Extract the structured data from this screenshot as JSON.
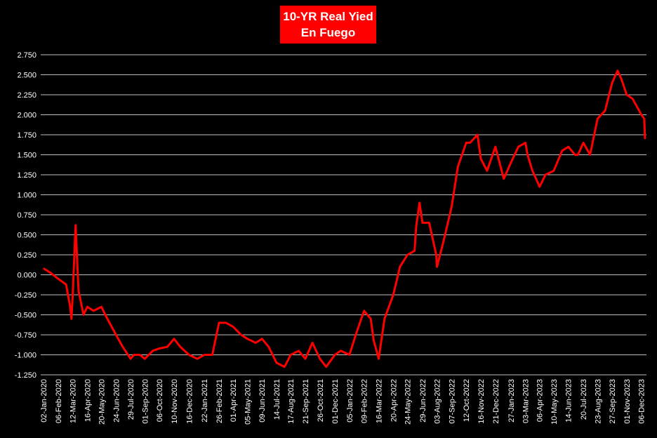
{
  "title_line1": "10-YR Real Yied",
  "title_line2": "En Fuego",
  "colors": {
    "background": "#000000",
    "line": "#ff0000",
    "title_bg": "#ff0000",
    "text": "#ffffff",
    "grid": "#ffffff"
  },
  "chart_data": {
    "type": "line",
    "title": "10-YR Real Yied En Fuego",
    "xlabel": "",
    "ylabel": "",
    "ylim": [
      -1.25,
      2.75
    ],
    "yticks": [
      "2.750",
      "2.500",
      "2.250",
      "2.000",
      "1.750",
      "1.500",
      "1.250",
      "1.000",
      "0.750",
      "0.500",
      "0.250",
      "0.000",
      "-0.250",
      "-0.500",
      "-0.750",
      "-1.000",
      "-1.250"
    ],
    "xticks": [
      "02-Jan-2020",
      "06-Feb-2020",
      "12-Mar-2020",
      "16-Apr-2020",
      "20-May-2020",
      "24-Jun-2020",
      "29-Jul-2020",
      "01-Sep-2020",
      "06-Oct-2020",
      "10-Nov-2020",
      "16-Dec-2020",
      "22-Jan-2021",
      "26-Feb-2021",
      "01-Apr-2021",
      "05-May-2021",
      "09-Jun-2021",
      "14-Jul-2021",
      "17-Aug-2021",
      "21-Sep-2021",
      "26-Oct-2021",
      "01-Dec-2021",
      "05-Jan-2022",
      "09-Feb-2022",
      "16-Mar-2022",
      "20-Apr-2022",
      "24-May-2022",
      "29-Jun-2022",
      "03-Aug-2022",
      "07-Sep-2022",
      "12-Oct-2022",
      "16-Nov-2022",
      "21-Dec-2022",
      "27-Jan-2023",
      "03-Mar-2023",
      "06-Apr-2023",
      "10-May-2023",
      "14-Jun-2023",
      "20-Jul-2023",
      "23-Aug-2023",
      "27-Sep-2023",
      "01-Nov-2023",
      "06-Dec-2023"
    ],
    "grid": true,
    "legend": "none",
    "series": [
      {
        "x": [
          "2020-01-02",
          "2020-01-20",
          "2020-02-06",
          "2020-02-25",
          "2020-03-06",
          "2020-03-09",
          "2020-03-12",
          "2020-03-19",
          "2020-03-26",
          "2020-04-07",
          "2020-04-16",
          "2020-05-01",
          "2020-05-20",
          "2020-05-29",
          "2020-06-24",
          "2020-07-10",
          "2020-07-29",
          "2020-08-06",
          "2020-08-20",
          "2020-09-01",
          "2020-09-20",
          "2020-10-06",
          "2020-10-25",
          "2020-11-10",
          "2020-11-25",
          "2020-12-16",
          "2021-01-05",
          "2021-01-22",
          "2021-02-10",
          "2021-02-26",
          "2021-03-15",
          "2021-04-01",
          "2021-04-20",
          "2021-05-05",
          "2021-05-25",
          "2021-06-09",
          "2021-06-25",
          "2021-07-14",
          "2021-08-02",
          "2021-08-17",
          "2021-09-05",
          "2021-09-21",
          "2021-10-08",
          "2021-10-26",
          "2021-11-10",
          "2021-12-01",
          "2021-12-15",
          "2022-01-05",
          "2022-01-20",
          "2022-02-09",
          "2022-02-25",
          "2022-03-04",
          "2022-03-16",
          "2022-03-30",
          "2022-04-20",
          "2022-05-06",
          "2022-05-24",
          "2022-06-10",
          "2022-06-14",
          "2022-06-22",
          "2022-06-29",
          "2022-07-15",
          "2022-08-01",
          "2022-08-03",
          "2022-08-20",
          "2022-09-07",
          "2022-09-22",
          "2022-10-12",
          "2022-10-21",
          "2022-11-08",
          "2022-11-16",
          "2022-12-01",
          "2022-12-21",
          "2023-01-10",
          "2023-01-27",
          "2023-02-14",
          "2023-03-03",
          "2023-03-08",
          "2023-03-20",
          "2023-04-06",
          "2023-04-20",
          "2023-05-10",
          "2023-05-30",
          "2023-06-14",
          "2023-06-30",
          "2023-07-07",
          "2023-07-20",
          "2023-08-05",
          "2023-08-23",
          "2023-09-10",
          "2023-09-27",
          "2023-10-10",
          "2023-10-19",
          "2023-11-01",
          "2023-11-15",
          "2023-12-01",
          "2023-12-06",
          "2023-12-13",
          "2023-12-15"
        ],
        "values": [
          0.08,
          0.02,
          -0.05,
          -0.12,
          -0.4,
          -0.55,
          -0.25,
          0.62,
          -0.2,
          -0.5,
          -0.4,
          -0.45,
          -0.4,
          -0.5,
          -0.75,
          -0.9,
          -1.05,
          -1.0,
          -1.0,
          -1.05,
          -0.95,
          -0.92,
          -0.9,
          -0.8,
          -0.9,
          -1.0,
          -1.05,
          -1.0,
          -1.0,
          -0.6,
          -0.6,
          -0.65,
          -0.75,
          -0.8,
          -0.85,
          -0.8,
          -0.9,
          -1.1,
          -1.15,
          -1.0,
          -0.95,
          -1.05,
          -0.85,
          -1.05,
          -1.15,
          -1.0,
          -0.95,
          -1.0,
          -0.75,
          -0.45,
          -0.55,
          -0.82,
          -1.05,
          -0.55,
          -0.25,
          0.1,
          0.25,
          0.3,
          0.6,
          0.9,
          0.65,
          0.65,
          0.25,
          0.1,
          0.45,
          0.85,
          1.35,
          1.65,
          1.65,
          1.75,
          1.45,
          1.3,
          1.6,
          1.2,
          1.4,
          1.6,
          1.65,
          1.5,
          1.3,
          1.1,
          1.25,
          1.3,
          1.55,
          1.6,
          1.5,
          1.5,
          1.65,
          1.5,
          1.95,
          2.05,
          2.4,
          2.55,
          2.45,
          2.25,
          2.2,
          2.05,
          2.0,
          1.95,
          1.7
        ]
      }
    ]
  }
}
